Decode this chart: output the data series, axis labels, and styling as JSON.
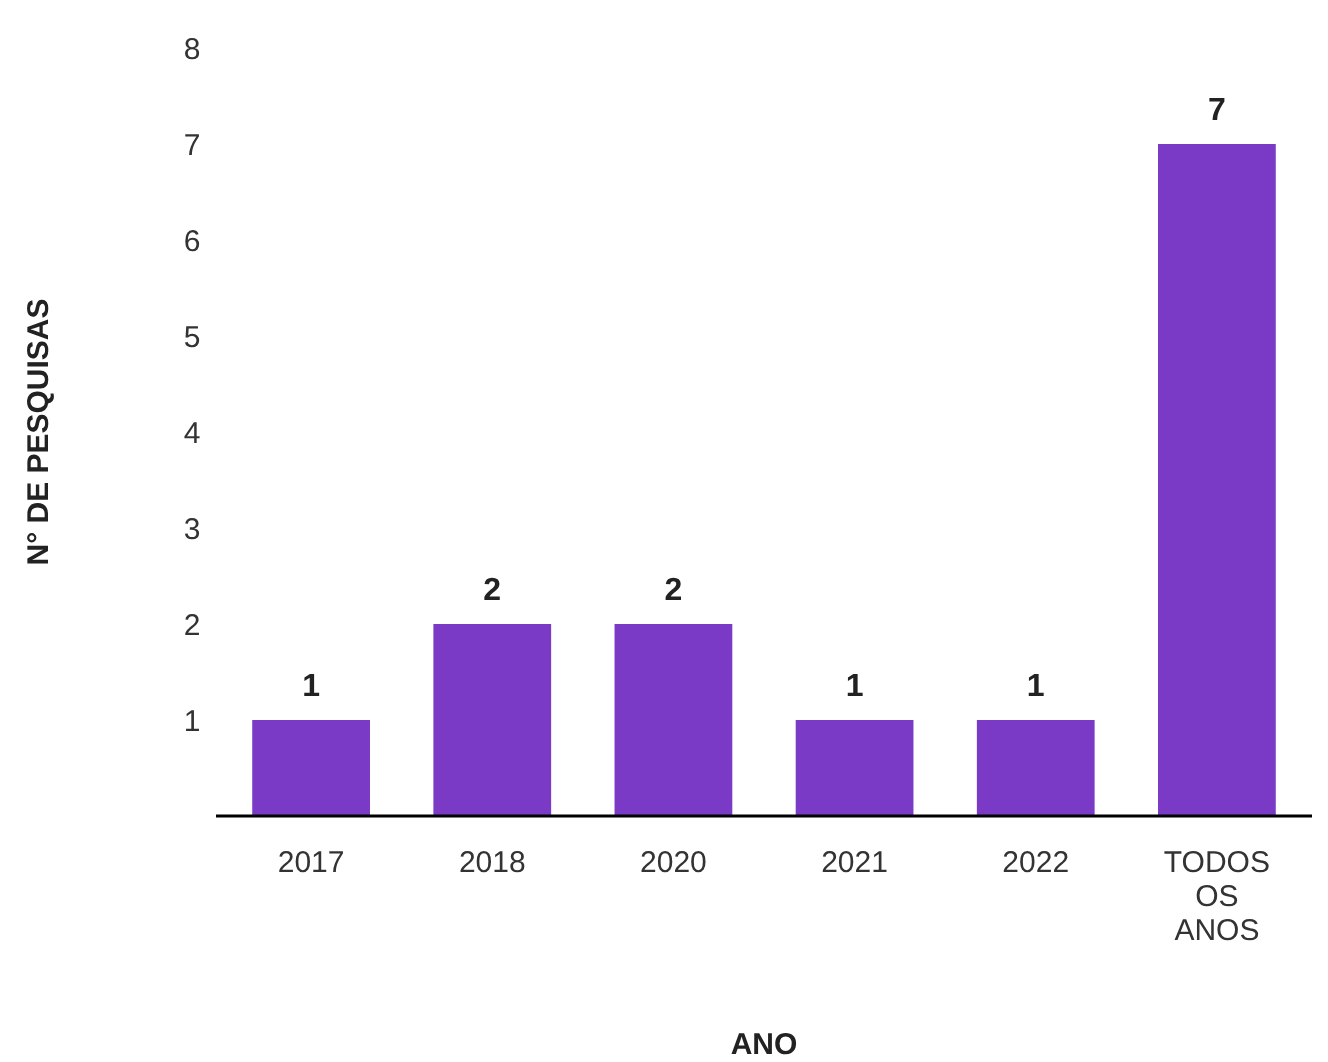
{
  "chart_data": {
    "type": "bar",
    "xlabel": "ANO",
    "ylabel": "N° DE PESQUISAS",
    "categories": [
      "2017",
      "2018",
      "2020",
      "2021",
      "2022",
      "TODOS OS ANOS"
    ],
    "values": [
      1,
      2,
      2,
      1,
      1,
      7
    ],
    "color": "#7b3ac6",
    "ylim": [
      0,
      8
    ],
    "yticks": [
      1,
      2,
      3,
      4,
      5,
      6,
      7,
      8
    ],
    "grid": false,
    "data_labels": true
  }
}
